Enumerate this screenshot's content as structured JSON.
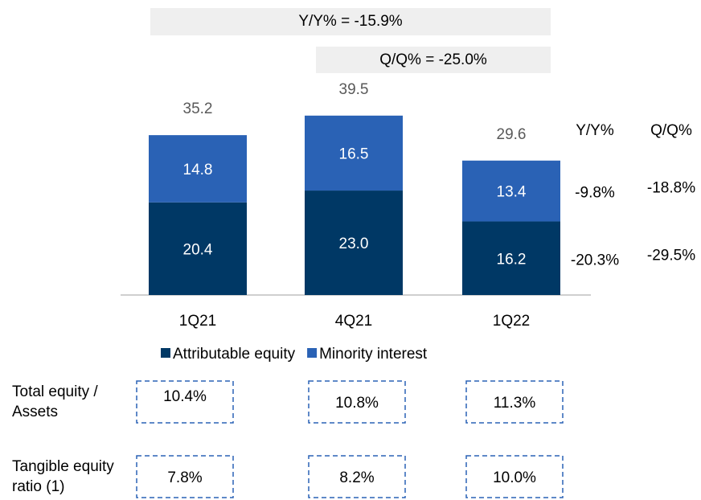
{
  "chart_data": {
    "type": "stacked-bar",
    "categories": [
      "1Q21",
      "4Q21",
      "1Q22"
    ],
    "series": [
      {
        "name": "Attributable equity",
        "color": "#003865",
        "values": [
          20.4,
          23.0,
          16.2
        ]
      },
      {
        "name": "Minority interest",
        "color": "#2a62b5",
        "values": [
          14.8,
          16.5,
          13.4
        ]
      }
    ],
    "value_labels": [
      [
        "20.4",
        "23.0",
        "16.2"
      ],
      [
        "14.8",
        "16.5",
        "13.4"
      ]
    ],
    "totals": [
      35.2,
      39.5,
      29.6
    ],
    "ylim": [
      0,
      40
    ],
    "legend": "bottom",
    "banners": [
      "Y/Y% = -15.9%",
      "Q/Q% = -25.0%"
    ],
    "growth": [
      {
        "header": "Y/Y%",
        "values": [
          "-20.3%",
          "-9.8%"
        ]
      },
      {
        "header": "Q/Q%",
        "values": [
          "-29.5%",
          "-18.8%"
        ]
      }
    ]
  },
  "table": {
    "rows": [
      {
        "label": [
          "Total equity /",
          "Assets"
        ],
        "values": [
          "10.4%",
          "10.8%",
          "11.3%"
        ]
      },
      {
        "label": [
          "Tangible equity",
          "ratio (1)"
        ],
        "values": [
          "7.8%",
          "8.2%",
          "10.0%"
        ]
      }
    ]
  }
}
